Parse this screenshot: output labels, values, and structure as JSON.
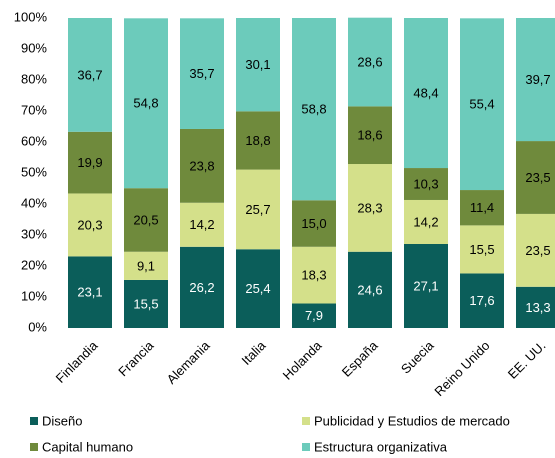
{
  "chart_data": {
    "type": "stacked_bar",
    "categories": [
      "Finlandia",
      "Francia",
      "Alemania",
      "Italia",
      "Holanda",
      "España",
      "Suecia",
      "Reino Unido",
      "EE. UU."
    ],
    "series": [
      {
        "name": "Diseño",
        "color": "#0b5e5a",
        "values": [
          23.1,
          15.5,
          26.2,
          25.4,
          7.9,
          24.6,
          27.1,
          17.6,
          13.3
        ],
        "value_labels": [
          "23,1",
          "15,5",
          "26,2",
          "25,4",
          "7,9",
          "24,6",
          "27,1",
          "17,6",
          "13,3"
        ]
      },
      {
        "name": "Publicidad y Estudios de mercado",
        "color": "#d4e08a",
        "values": [
          20.3,
          9.1,
          14.2,
          25.7,
          18.3,
          28.3,
          14.2,
          15.5,
          23.5
        ],
        "value_labels": [
          "20,3",
          "9,1",
          "14,2",
          "25,7",
          "18,3",
          "28,3",
          "14,2",
          "15,5",
          "23,5"
        ]
      },
      {
        "name": "Capital humano",
        "color": "#6f8a3c",
        "values": [
          19.9,
          20.5,
          23.8,
          18.8,
          15.0,
          18.6,
          10.3,
          11.4,
          23.5
        ],
        "value_labels": [
          "19,9",
          "20,5",
          "23,8",
          "18,8",
          "15,0",
          "18,6",
          "10,3",
          "11,4",
          "23,5"
        ]
      },
      {
        "name": "Estructura organizativa",
        "color": "#6ccbbb",
        "values": [
          36.7,
          54.8,
          35.7,
          30.1,
          58.8,
          28.6,
          48.4,
          55.4,
          39.7
        ],
        "value_labels": [
          "36,7",
          "54,8",
          "35,7",
          "30,1",
          "58,8",
          "28,6",
          "48,4",
          "55,4",
          "39,7"
        ]
      }
    ],
    "ylim": [
      0,
      100
    ],
    "yticks": [
      {
        "value": 0,
        "label": "0%"
      },
      {
        "value": 10,
        "label": "10%"
      },
      {
        "value": 20,
        "label": "20%"
      },
      {
        "value": 30,
        "label": "30%"
      },
      {
        "value": 40,
        "label": "40%"
      },
      {
        "value": 50,
        "label": "50%"
      },
      {
        "value": 60,
        "label": "60%"
      },
      {
        "value": 70,
        "label": "70%"
      },
      {
        "value": 80,
        "label": "80%"
      },
      {
        "value": 90,
        "label": "90%"
      },
      {
        "value": 100,
        "label": "100%"
      }
    ],
    "legend": "bottom"
  }
}
